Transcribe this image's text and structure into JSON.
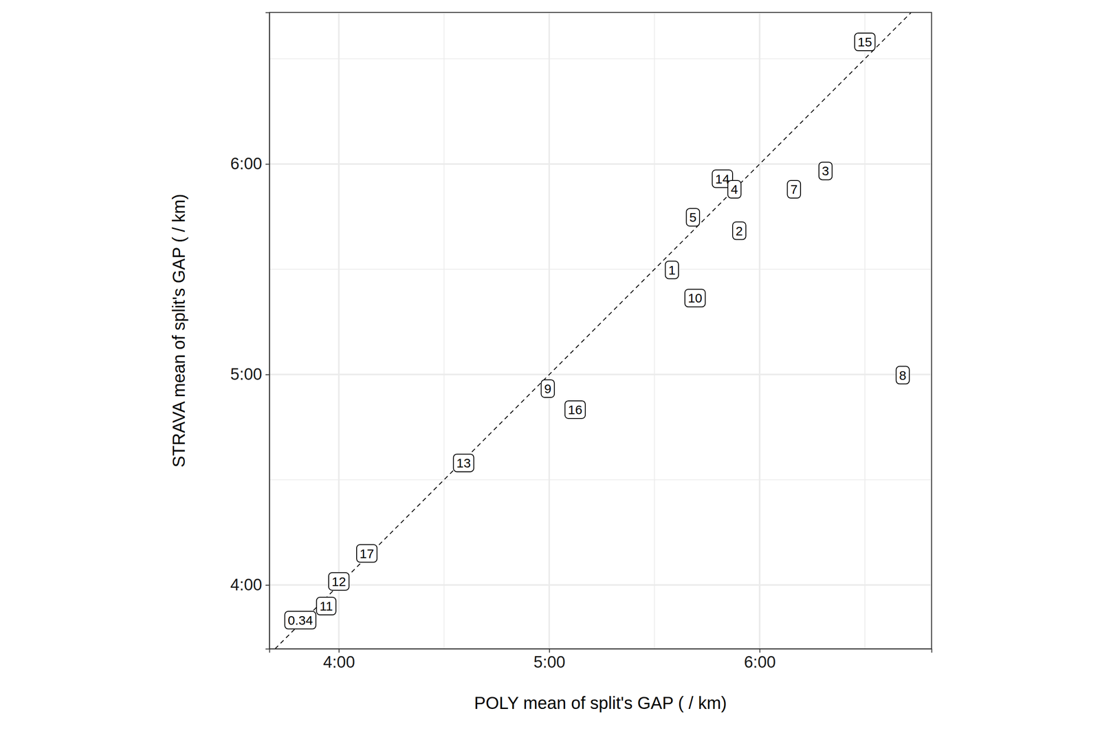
{
  "chart_data": {
    "type": "scatter",
    "xlabel": "POLY mean of split's GAP ( / km)",
    "ylabel": "STRAVA mean of split's GAP ( / km)",
    "point_labels": [
      "0.34",
      "11",
      "12",
      "17",
      "13",
      "9",
      "16",
      "1",
      "10",
      "5",
      "2",
      "14",
      "4",
      "7",
      "3",
      "15",
      "8"
    ],
    "x": [
      3.817,
      3.94,
      4.0,
      4.133,
      4.593,
      4.993,
      5.123,
      5.583,
      5.693,
      5.683,
      5.903,
      5.823,
      5.88,
      6.163,
      6.313,
      6.5,
      6.68
    ],
    "values": [
      3.833,
      3.9,
      4.017,
      4.15,
      4.58,
      4.933,
      4.833,
      5.497,
      5.363,
      5.747,
      5.683,
      5.93,
      5.88,
      5.88,
      5.967,
      6.58,
      4.997
    ],
    "xlim": [
      3.67,
      6.817
    ],
    "ylim": [
      3.697,
      6.72
    ],
    "xticks": [
      {
        "value": 4,
        "label": "4:00"
      },
      {
        "value": 5,
        "label": "5:00"
      },
      {
        "value": 6,
        "label": "6:00"
      }
    ],
    "yticks": [
      {
        "value": 4,
        "label": "4:00"
      },
      {
        "value": 5,
        "label": "5:00"
      },
      {
        "value": 6,
        "label": "6:00"
      }
    ],
    "grid": true,
    "marker": "label"
  }
}
